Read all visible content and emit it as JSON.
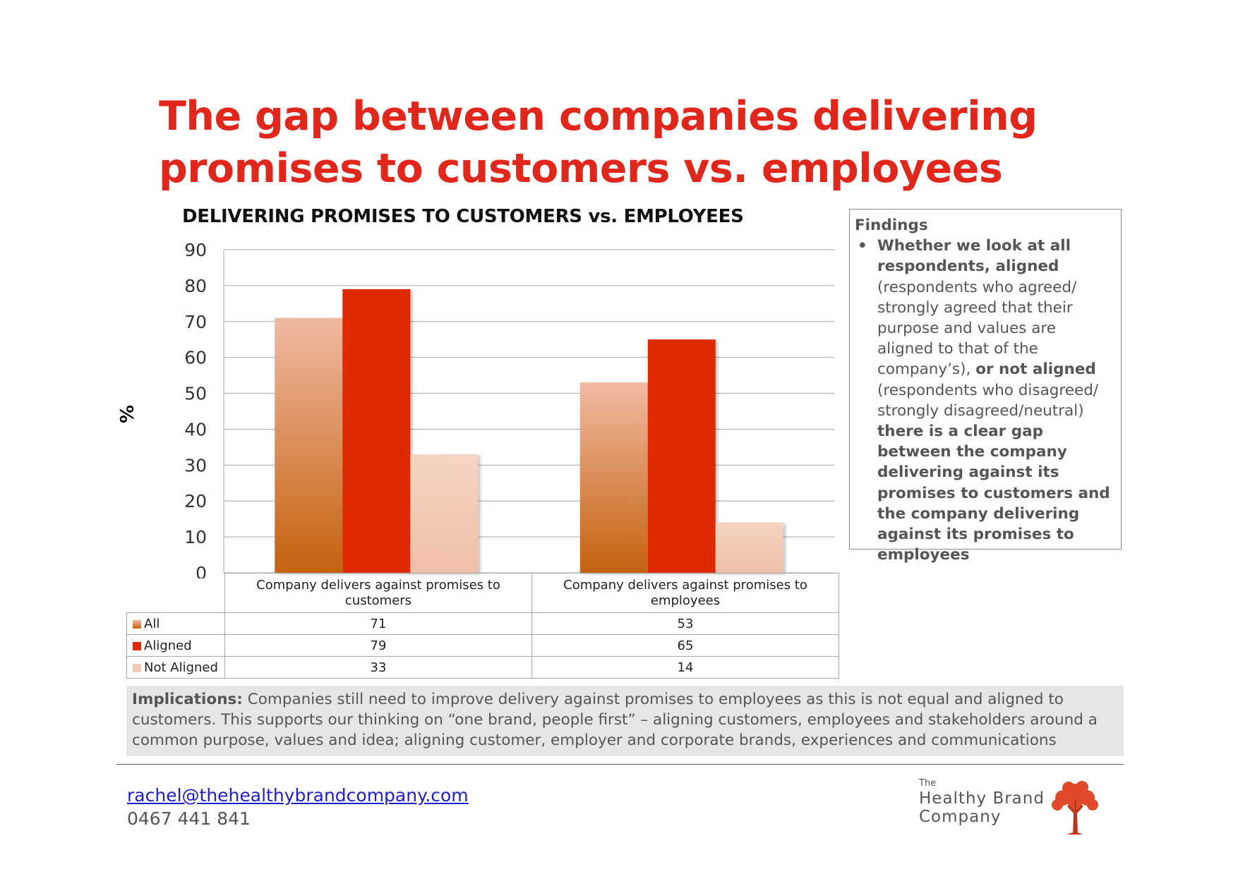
{
  "title_line1": "The gap between companies delivering",
  "title_line2": "promises to customers vs. employees",
  "chart_data": {
    "type": "bar",
    "title": "DELIVERING PROMISES TO CUSTOMERS vs. EMPLOYEES",
    "ylabel": "%",
    "xlabel": "",
    "ylim": [
      0,
      90
    ],
    "yticks": [
      0,
      10,
      20,
      30,
      40,
      50,
      60,
      70,
      80,
      90
    ],
    "grid": true,
    "categories": [
      "Company delivers against promises to customers",
      "Company delivers against promises to employees"
    ],
    "category_lines": [
      [
        "Company delivers against promises to",
        "customers"
      ],
      [
        "Company delivers against promises to",
        "employees"
      ]
    ],
    "series": [
      {
        "name": "All",
        "values": [
          71,
          53
        ],
        "color": "#d57a3d"
      },
      {
        "name": "Aligned",
        "values": [
          79,
          65
        ],
        "color": "#dd2a05"
      },
      {
        "name": "Not Aligned",
        "values": [
          33,
          14
        ],
        "color": "#f2cbb8"
      }
    ],
    "legend": "data-table-below"
  },
  "findings": {
    "heading": "Findings",
    "bullet": "•",
    "p1_bold": "Whether we look at all respondents, aligned",
    "p2": " (respondents who agreed/ strongly agreed that their purpose and values are aligned to that of the company’s), ",
    "p3_bold": "or not aligned",
    "p4": " (respondents who disagreed/ strongly disagreed/neutral) ",
    "p5_bold": "there is a clear gap between the company delivering against its promises to customers and the company delivering against its promises to employees"
  },
  "implications": {
    "label": "Implications:",
    "text": " Companies still need to improve delivery against promises to employees as this is not equal and aligned to customers. This supports our thinking on “one brand, people first” – aligning customers, employees and stakeholders around a common purpose, values and idea; aligning customer, employer and corporate brands, experiences and communications"
  },
  "contact": {
    "email": "rachel@thehealthybrandcompany.com",
    "phone": "0467 441 841"
  },
  "logo": {
    "the": "The",
    "line1": "Healthy Brand",
    "line2": "Company",
    "icon": "tree-icon",
    "color": "#e04a2a"
  }
}
